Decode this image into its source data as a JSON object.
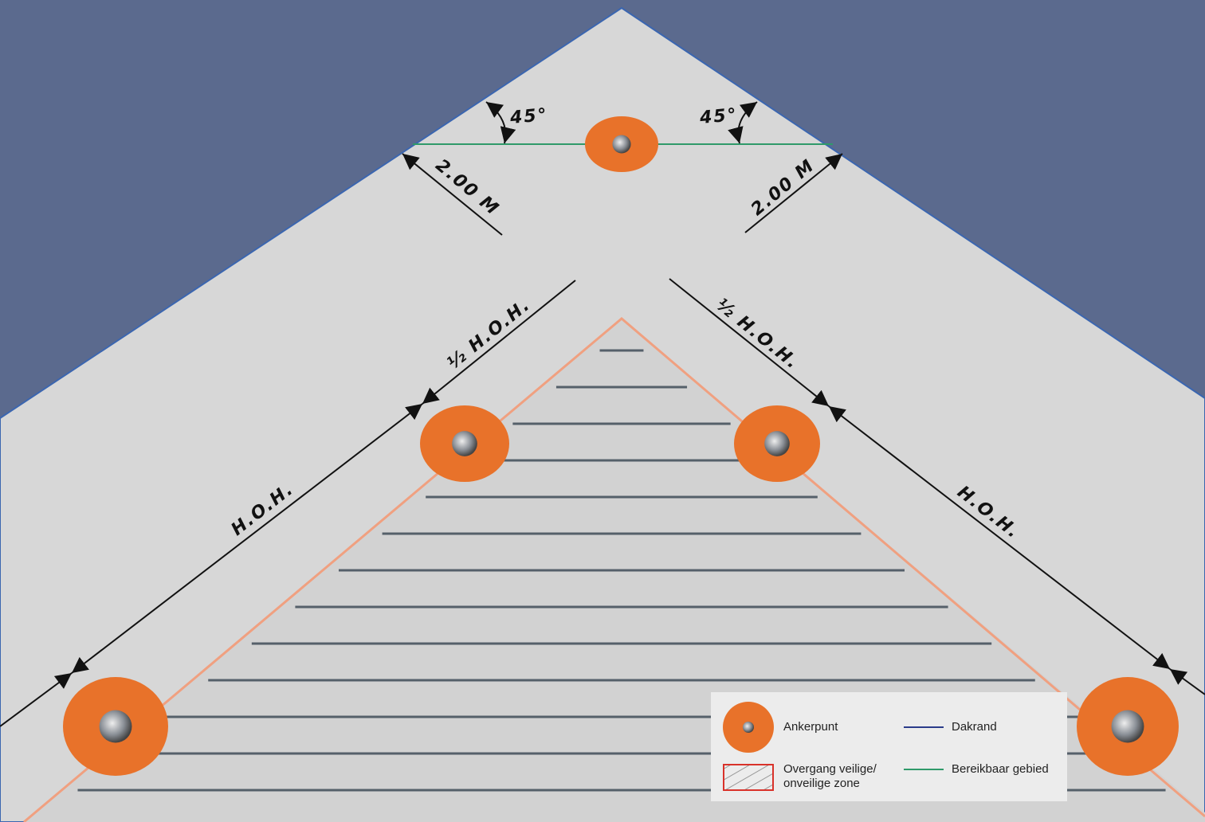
{
  "labels": [
    "45°",
    "45°",
    "2.00 M",
    "2.00 M",
    "½ H.O.H.",
    "½ H.O.H.",
    "H.O.H.",
    "H.O.H."
  ],
  "legend": [
    {
      "label": "Ankerpunt"
    },
    {
      "label": "Dakrand"
    },
    {
      "label": [
        "Overgang veilige/",
        "onveilige zone"
      ]
    },
    {
      "label": "Bereikbaar gebied"
    }
  ]
}
